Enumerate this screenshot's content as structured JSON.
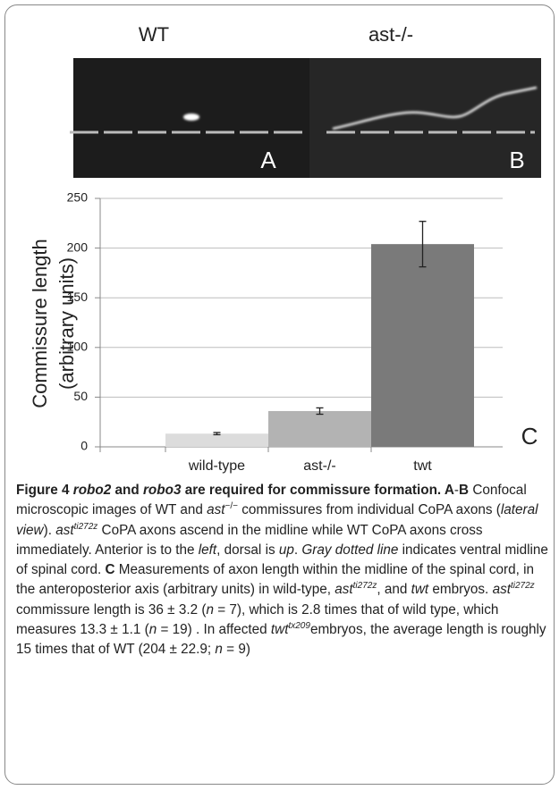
{
  "figure": {
    "image_labels": [
      "WT",
      "ast-/-"
    ],
    "panel_labels": [
      "A",
      "B",
      "C"
    ]
  },
  "chart_data": {
    "type": "bar",
    "y_label": [
      "Commissure length",
      "(arbitrary units)"
    ],
    "categories": [
      "wild-type",
      "ast-/-",
      "twt"
    ],
    "values": [
      13.3,
      36,
      204
    ],
    "errors": [
      1.1,
      3.2,
      22.9
    ],
    "colors": [
      "#dcdcdc",
      "#b3b3b3",
      "#7a7a7a"
    ],
    "ylim": [
      0,
      250
    ],
    "yticks": [
      0,
      50,
      100,
      150,
      200,
      250
    ],
    "grid": true
  },
  "caption": {
    "runs": [
      {
        "text": "Figure 4 ",
        "style": "b"
      },
      {
        "text": "robo2",
        "style": "bi"
      },
      {
        "text": " and ",
        "style": "b"
      },
      {
        "text": "robo3",
        "style": "bi"
      },
      {
        "text": " are required for commissure formation. ",
        "style": "b"
      },
      {
        "text": "A",
        "style": "b"
      },
      {
        "text": "-",
        "style": "n"
      },
      {
        "text": "B",
        "style": "b"
      },
      {
        "text": " Confocal microscopic images of WT and ",
        "style": "n"
      },
      {
        "text": "ast",
        "style": "i"
      },
      {
        "text": "−/−",
        "style": "sup"
      },
      {
        "text": " commissures from individual CoPA axons (",
        "style": "n"
      },
      {
        "text": "lateral view",
        "style": "i"
      },
      {
        "text": "). ",
        "style": "n"
      },
      {
        "text": "ast",
        "style": "i"
      },
      {
        "text": "ti272z",
        "style": "supi"
      },
      {
        "text": " CoPA axons ascend in the midline while WT CoPA axons cross immediately. Anterior is to the ",
        "style": "n"
      },
      {
        "text": "left",
        "style": "i"
      },
      {
        "text": ", dorsal is ",
        "style": "n"
      },
      {
        "text": "up",
        "style": "i"
      },
      {
        "text": ". ",
        "style": "n"
      },
      {
        "text": "Gray dotted line",
        "style": "i"
      },
      {
        "text": " indicates ventral midline of spinal cord. ",
        "style": "n"
      },
      {
        "text": "C",
        "style": "b"
      },
      {
        "text": " Measurements of axon length within the midline of the spinal cord, in the anteroposterior axis (arbitrary units) in wild-type, ",
        "style": "n"
      },
      {
        "text": "ast",
        "style": "i"
      },
      {
        "text": "ti272z",
        "style": "supi"
      },
      {
        "text": ", and ",
        "style": "n"
      },
      {
        "text": "twt",
        "style": "i"
      },
      {
        "text": " embryos. ",
        "style": "n"
      },
      {
        "text": "ast",
        "style": "i"
      },
      {
        "text": "ti272z",
        "style": "supi"
      },
      {
        "text": " commissure length is 36 ± 3.2 (",
        "style": "n"
      },
      {
        "text": "n",
        "style": "i"
      },
      {
        "text": " = 7), which is 2.8 times that of wild type, which measures 13.3 ± 1.1 (",
        "style": "n"
      },
      {
        "text": "n",
        "style": "i"
      },
      {
        "text": " = 19) . In affected ",
        "style": "n"
      },
      {
        "text": "twt",
        "style": "i"
      },
      {
        "text": "tx209",
        "style": "supi"
      },
      {
        "text": "embryos, the average length is roughly 15 times that of WT (204 ± 22.9; ",
        "style": "n"
      },
      {
        "text": "n",
        "style": "i"
      },
      {
        "text": " = 9)",
        "style": "n"
      }
    ]
  }
}
